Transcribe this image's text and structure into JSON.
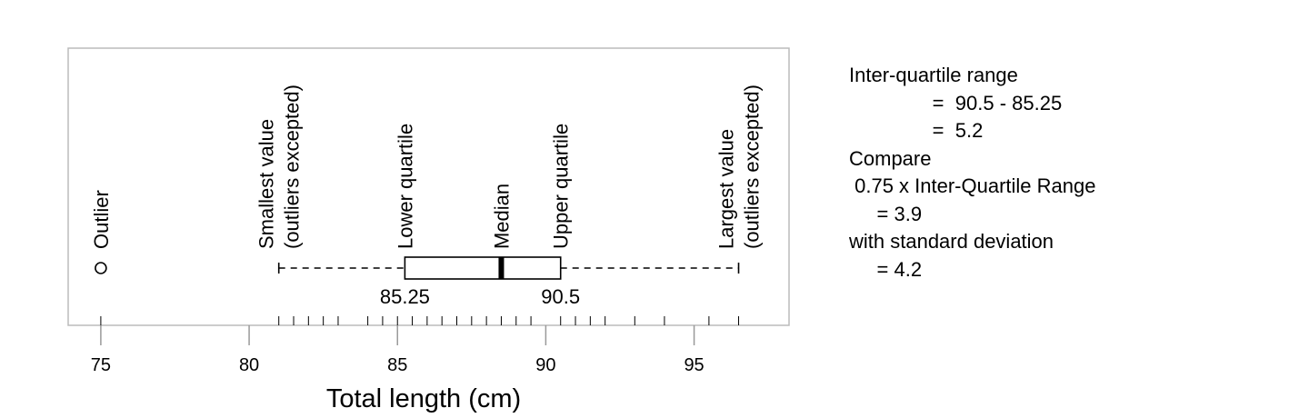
{
  "chart_data": {
    "type": "boxplot",
    "xlabel": "Total length (cm)",
    "xlim": [
      73.9,
      98.2
    ],
    "x_ticks": [
      75,
      80,
      85,
      90,
      95
    ],
    "box": {
      "whisker_low": 81,
      "lower_quartile": 85.25,
      "median": 88.5,
      "upper_quartile": 90.5,
      "whisker_high": 96.5
    },
    "outliers": [
      75
    ],
    "rug": [
      75,
      81,
      81.5,
      82,
      82.5,
      83,
      84,
      84.5,
      85,
      85.5,
      86,
      86.5,
      87,
      87.5,
      88,
      88.5,
      89,
      89.5,
      90.5,
      91,
      91.5,
      92,
      93,
      94,
      95.5,
      96.5
    ],
    "value_labels": [
      {
        "value": 85.25,
        "text": "85.25"
      },
      {
        "value": 90.5,
        "text": "90.5"
      }
    ],
    "annotations": [
      {
        "value": 75,
        "lines": [
          "Outlier"
        ]
      },
      {
        "value": 81,
        "lines": [
          "Smallest value",
          "(outliers excepted)"
        ]
      },
      {
        "value": 85.25,
        "lines": [
          "Lower quartile"
        ]
      },
      {
        "value": 88.5,
        "lines": [
          "Median"
        ]
      },
      {
        "value": 90.5,
        "lines": [
          "Upper quartile"
        ]
      },
      {
        "value": 96.5,
        "lines": [
          "Largest value",
          "(outliers excepted)"
        ]
      }
    ]
  },
  "notes": {
    "lines": [
      "Inter-quartile range",
      "               =  90.5 - 85.25",
      "               =  5.2",
      "Compare",
      " 0.75 x Inter-Quartile Range",
      "     = 3.9",
      "with standard deviation",
      "     = 4.2"
    ]
  }
}
